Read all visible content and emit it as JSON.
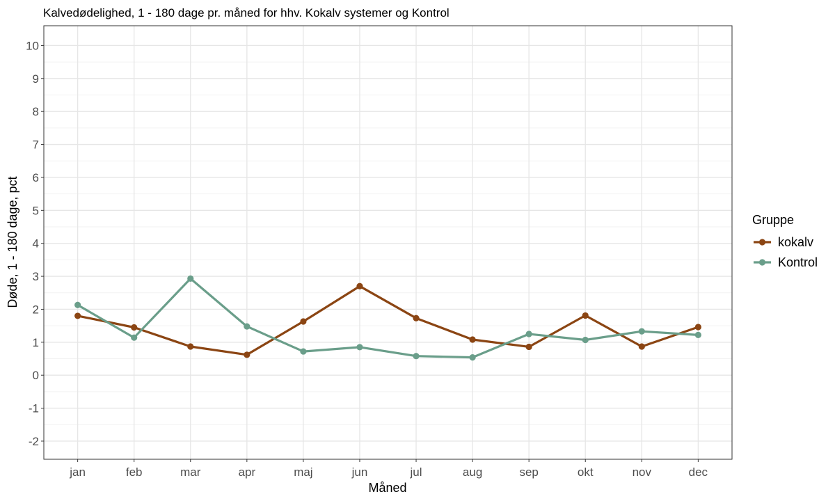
{
  "chart_data": {
    "type": "line",
    "title": "Kalvedødelighed, 1 - 180 dage pr. måned for hhv. Kokalv systemer og Kontrol",
    "xlabel": "Måned",
    "ylabel": "Døde, 1 - 180 dage, pct",
    "ylim": [
      -2.55,
      10.6
    ],
    "yticks": [
      -2,
      -1,
      0,
      1,
      2,
      3,
      4,
      5,
      6,
      7,
      8,
      9,
      10
    ],
    "ytick_labels": [
      "-2",
      "-1",
      "0",
      "1",
      "2",
      "3",
      "4",
      "5",
      "6",
      "7",
      "8",
      "9",
      "10"
    ],
    "categories": [
      "jan",
      "feb",
      "mar",
      "apr",
      "maj",
      "jun",
      "jul",
      "aug",
      "sep",
      "okt",
      "nov",
      "dec"
    ],
    "grid": true,
    "legend": {
      "title": "Gruppe",
      "position": "right"
    },
    "series": [
      {
        "name": "kokalv",
        "color": "#8B4513",
        "values": [
          1.8,
          1.45,
          0.87,
          0.62,
          1.63,
          2.7,
          1.73,
          1.08,
          0.86,
          1.81,
          0.87,
          1.46
        ]
      },
      {
        "name": "Kontrol",
        "color": "#6A9E8A",
        "values": [
          2.13,
          1.14,
          2.93,
          1.48,
          0.72,
          0.85,
          0.58,
          0.54,
          1.25,
          1.07,
          1.33,
          1.22
        ]
      }
    ]
  }
}
